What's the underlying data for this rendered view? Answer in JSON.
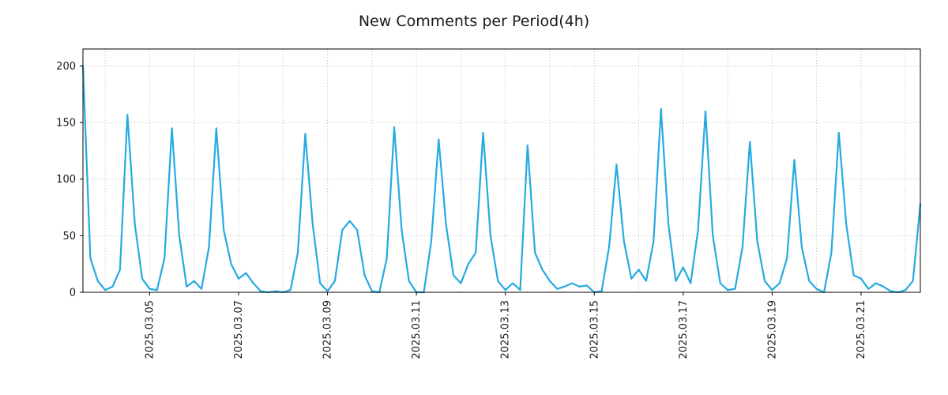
{
  "chart_data": {
    "type": "line",
    "title": "New Comments per Period(4h)",
    "xlabel": "",
    "ylabel": "",
    "series_name": "new_comments",
    "series_color": "#25aae1",
    "grid": true,
    "legend": "none",
    "ylim": [
      0,
      215
    ],
    "y_ticks": [
      0,
      50,
      100,
      150,
      200
    ],
    "period_hours": 4,
    "x_tick_labels": [
      "2025.03.05",
      "2025.03.07",
      "2025.03.09",
      "2025.03.11",
      "2025.03.13",
      "2025.03.15",
      "2025.03.17",
      "2025.03.19",
      "2025.03.21"
    ],
    "x_tick_positions": [
      9,
      21,
      33,
      45,
      57,
      69,
      81,
      93,
      105
    ],
    "x_gridline_positions": [
      3,
      9,
      15,
      21,
      27,
      33,
      39,
      45,
      51,
      57,
      63,
      69,
      75,
      81,
      87,
      93,
      99,
      105,
      111
    ],
    "values": [
      200,
      30,
      10,
      2,
      5,
      20,
      157,
      60,
      12,
      3,
      2,
      30,
      145,
      50,
      5,
      10,
      3,
      40,
      145,
      55,
      25,
      12,
      17,
      8,
      1,
      0,
      1,
      0,
      2,
      35,
      140,
      60,
      8,
      1,
      10,
      55,
      63,
      55,
      15,
      1,
      0,
      30,
      146,
      55,
      10,
      0,
      0,
      45,
      135,
      60,
      15,
      8,
      25,
      35,
      141,
      50,
      10,
      2,
      8,
      2,
      130,
      35,
      20,
      10,
      3,
      5,
      8,
      5,
      6,
      0,
      1,
      40,
      113,
      45,
      12,
      20,
      10,
      45,
      162,
      60,
      10,
      22,
      8,
      55,
      160,
      50,
      8,
      2,
      3,
      40,
      133,
      45,
      10,
      2,
      8,
      30,
      117,
      40,
      10,
      3,
      0,
      35,
      141,
      60,
      15,
      12,
      3,
      8,
      5,
      1,
      0,
      2,
      10,
      78
    ]
  }
}
